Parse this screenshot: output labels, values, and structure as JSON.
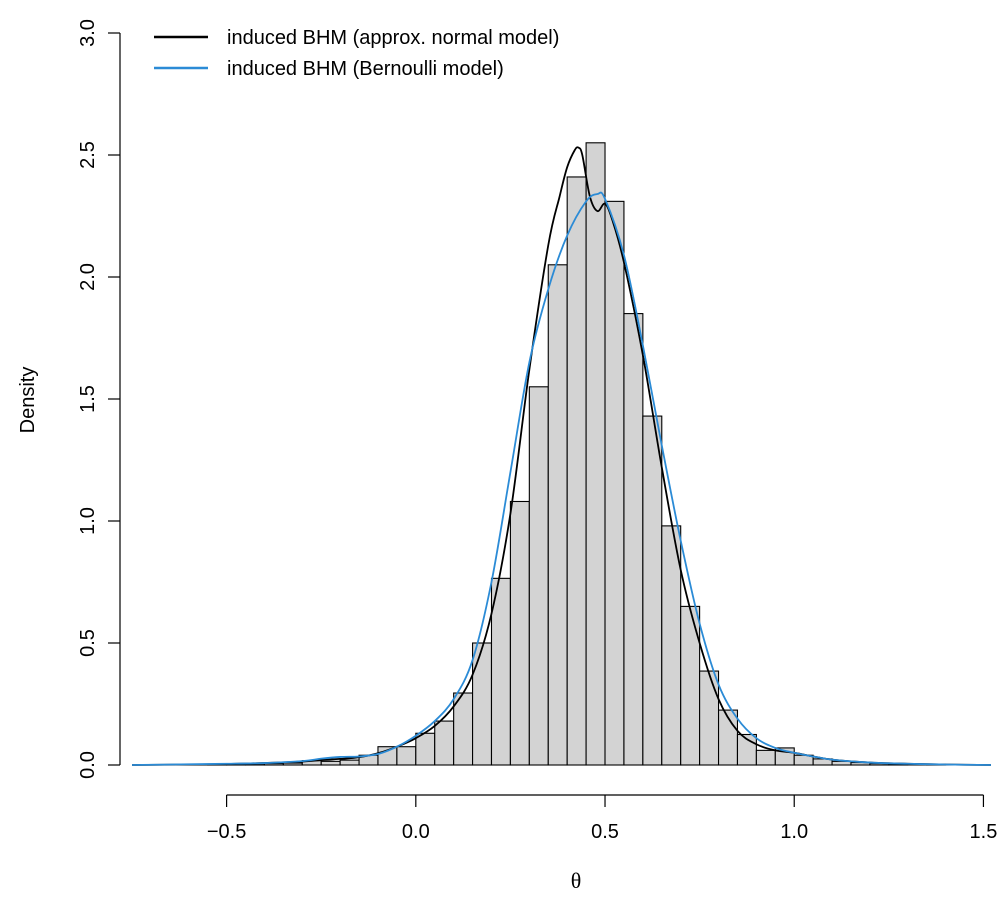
{
  "chart_data": {
    "type": "histogram",
    "title": "",
    "xlabel": "θ",
    "ylabel": "Density",
    "xlim": [
      -0.75,
      1.52
    ],
    "ylim": [
      0,
      3.0
    ],
    "x_ticks": [
      -0.5,
      0.0,
      0.5,
      1.0,
      1.5
    ],
    "x_tick_labels": [
      "−0.5",
      "0.0",
      "0.5",
      "1.0",
      "1.5"
    ],
    "y_ticks": [
      0.0,
      0.5,
      1.0,
      1.5,
      2.0,
      2.5,
      3.0
    ],
    "y_tick_labels": [
      "0.0",
      "0.5",
      "1.0",
      "1.5",
      "2.0",
      "2.5",
      "3.0"
    ],
    "histogram": {
      "bin_width": 0.05,
      "fill": "#d3d3d3",
      "bars": [
        {
          "x0": -0.55,
          "x1": -0.5,
          "density": 0.003
        },
        {
          "x0": -0.5,
          "x1": -0.45,
          "density": 0.004
        },
        {
          "x0": -0.45,
          "x1": -0.4,
          "density": 0.005
        },
        {
          "x0": -0.4,
          "x1": -0.35,
          "density": 0.006
        },
        {
          "x0": -0.35,
          "x1": -0.3,
          "density": 0.008
        },
        {
          "x0": -0.3,
          "x1": -0.25,
          "density": 0.018
        },
        {
          "x0": -0.25,
          "x1": -0.2,
          "density": 0.015
        },
        {
          "x0": -0.2,
          "x1": -0.15,
          "density": 0.02
        },
        {
          "x0": -0.15,
          "x1": -0.1,
          "density": 0.04
        },
        {
          "x0": -0.1,
          "x1": -0.05,
          "density": 0.075
        },
        {
          "x0": -0.05,
          "x1": 0.0,
          "density": 0.075
        },
        {
          "x0": 0.0,
          "x1": 0.05,
          "density": 0.13
        },
        {
          "x0": 0.05,
          "x1": 0.1,
          "density": 0.18
        },
        {
          "x0": 0.1,
          "x1": 0.15,
          "density": 0.295
        },
        {
          "x0": 0.15,
          "x1": 0.2,
          "density": 0.5
        },
        {
          "x0": 0.2,
          "x1": 0.25,
          "density": 0.765
        },
        {
          "x0": 0.25,
          "x1": 0.3,
          "density": 1.08
        },
        {
          "x0": 0.3,
          "x1": 0.35,
          "density": 1.55
        },
        {
          "x0": 0.35,
          "x1": 0.4,
          "density": 2.05
        },
        {
          "x0": 0.4,
          "x1": 0.45,
          "density": 2.41
        },
        {
          "x0": 0.45,
          "x1": 0.5,
          "density": 2.55
        },
        {
          "x0": 0.5,
          "x1": 0.55,
          "density": 2.31
        },
        {
          "x0": 0.55,
          "x1": 0.6,
          "density": 1.85
        },
        {
          "x0": 0.6,
          "x1": 0.65,
          "density": 1.43
        },
        {
          "x0": 0.65,
          "x1": 0.7,
          "density": 0.98
        },
        {
          "x0": 0.7,
          "x1": 0.75,
          "density": 0.65
        },
        {
          "x0": 0.75,
          "x1": 0.8,
          "density": 0.385
        },
        {
          "x0": 0.8,
          "x1": 0.85,
          "density": 0.225
        },
        {
          "x0": 0.85,
          "x1": 0.9,
          "density": 0.125
        },
        {
          "x0": 0.9,
          "x1": 0.95,
          "density": 0.06
        },
        {
          "x0": 0.95,
          "x1": 1.0,
          "density": 0.07
        },
        {
          "x0": 1.0,
          "x1": 1.05,
          "density": 0.04
        },
        {
          "x0": 1.05,
          "x1": 1.1,
          "density": 0.025
        },
        {
          "x0": 1.1,
          "x1": 1.15,
          "density": 0.015
        },
        {
          "x0": 1.15,
          "x1": 1.2,
          "density": 0.01
        },
        {
          "x0": 1.2,
          "x1": 1.25,
          "density": 0.006
        },
        {
          "x0": 1.25,
          "x1": 1.3,
          "density": 0.004
        },
        {
          "x0": 1.35,
          "x1": 1.4,
          "density": 0.003
        }
      ]
    },
    "series": [
      {
        "name": "induced BHM (approx. normal model)",
        "color": "#000000",
        "x": [
          -0.75,
          -0.6,
          -0.5,
          -0.4,
          -0.3,
          -0.25,
          -0.2,
          -0.15,
          -0.1,
          -0.05,
          0.0,
          0.05,
          0.1,
          0.15,
          0.2,
          0.25,
          0.3,
          0.35,
          0.38,
          0.4,
          0.42,
          0.43,
          0.44,
          0.46,
          0.48,
          0.5,
          0.52,
          0.55,
          0.6,
          0.65,
          0.7,
          0.75,
          0.8,
          0.85,
          0.9,
          0.95,
          1.0,
          1.05,
          1.1,
          1.2,
          1.3,
          1.4,
          1.52
        ],
        "y": [
          0.0,
          0.002,
          0.004,
          0.008,
          0.014,
          0.02,
          0.025,
          0.032,
          0.048,
          0.075,
          0.11,
          0.16,
          0.24,
          0.37,
          0.62,
          1.03,
          1.62,
          2.13,
          2.33,
          2.45,
          2.52,
          2.53,
          2.5,
          2.33,
          2.27,
          2.3,
          2.23,
          2.06,
          1.68,
          1.22,
          0.8,
          0.5,
          0.27,
          0.14,
          0.085,
          0.06,
          0.05,
          0.035,
          0.022,
          0.01,
          0.005,
          0.002,
          0.0
        ]
      },
      {
        "name": "induced BHM (Bernoulli model)",
        "color": "#2b8bd6",
        "x": [
          -0.75,
          -0.6,
          -0.5,
          -0.4,
          -0.3,
          -0.25,
          -0.2,
          -0.15,
          -0.1,
          -0.05,
          0.0,
          0.05,
          0.1,
          0.15,
          0.2,
          0.25,
          0.3,
          0.35,
          0.4,
          0.45,
          0.48,
          0.5,
          0.55,
          0.6,
          0.65,
          0.7,
          0.75,
          0.8,
          0.85,
          0.9,
          0.95,
          1.0,
          1.05,
          1.1,
          1.2,
          1.3,
          1.4,
          1.52
        ],
        "y": [
          0.0,
          0.003,
          0.005,
          0.008,
          0.016,
          0.026,
          0.033,
          0.035,
          0.045,
          0.075,
          0.12,
          0.18,
          0.27,
          0.43,
          0.75,
          1.2,
          1.65,
          1.95,
          2.17,
          2.31,
          2.34,
          2.32,
          2.09,
          1.72,
          1.31,
          0.92,
          0.58,
          0.33,
          0.19,
          0.11,
          0.07,
          0.05,
          0.035,
          0.022,
          0.01,
          0.005,
          0.002,
          0.0
        ]
      }
    ],
    "legend": {
      "position": "top-left",
      "entries": [
        {
          "label": "induced BHM (approx. normal model)",
          "color": "#000000"
        },
        {
          "label": "induced BHM (Bernoulli model)",
          "color": "#2b8bd6"
        }
      ]
    }
  }
}
